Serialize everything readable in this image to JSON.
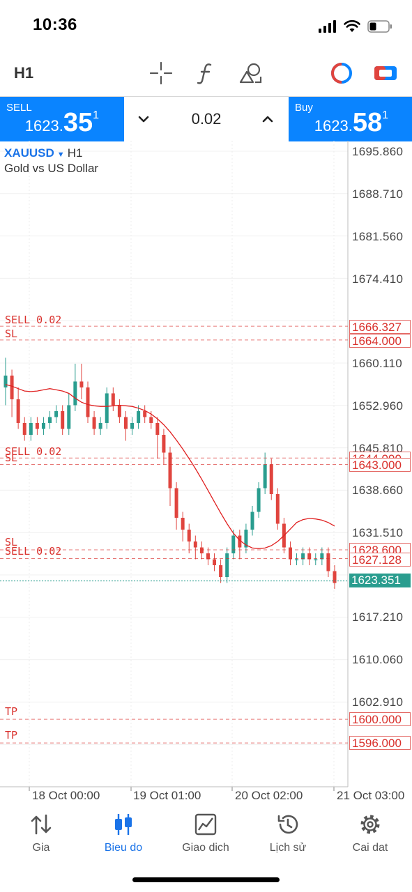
{
  "status_bar": {
    "time": "10:36"
  },
  "toolbar": {
    "timeframe": "H1"
  },
  "trade": {
    "sell_label": "SELL",
    "sell_price_main": "1623.",
    "sell_price_big": "35",
    "sell_price_sup": "1",
    "lot": "0.02",
    "buy_label": "Buy",
    "buy_price_main": "1623.",
    "buy_price_big": "58",
    "buy_price_sup": "1"
  },
  "chart": {
    "symbol": "XAUUSD",
    "timeframe": "H1",
    "description": "Gold vs US Dollar",
    "y_axis_labels": [
      "1695.860",
      "1688.710",
      "1681.560",
      "1674.410",
      "1660.110",
      "1652.960",
      "1645.810",
      "1638.660",
      "1631.510",
      "1617.210",
      "1610.060",
      "1602.910"
    ],
    "x_axis_labels": [
      "18 Oct 00:00",
      "19 Oct 01:00",
      "20 Oct 02:00",
      "21 Oct 03:00"
    ],
    "level_lines": [
      {
        "label": "SELL 0.02",
        "price": "1666.327"
      },
      {
        "label": "SL",
        "price": "1664.000"
      },
      {
        "label": "SELL 0.02",
        "price": "1644.090"
      },
      {
        "label": "SL",
        "price": "1643.000"
      },
      {
        "label": "SL",
        "price": "1628.600"
      },
      {
        "label": "SELL 0.02",
        "price": "1627.128"
      },
      {
        "label": "TP",
        "price": "1600.000"
      },
      {
        "label": "TP",
        "price": "1596.000"
      }
    ],
    "current_price": "1623.351"
  },
  "colors": {
    "accent": "#0a84ff",
    "bull": "#2a9d8f",
    "bear": "#e0443e",
    "level": "#d9302c",
    "ma": "#e02020"
  },
  "chart_data": {
    "type": "candlestick",
    "ylim": [
      1591.5,
      1698.0
    ],
    "series_ma": [
      1656.5,
      1656.2,
      1655.8,
      1655.4,
      1655.3,
      1655.4,
      1655.6,
      1655.8,
      1655.6,
      1655.4,
      1655.0,
      1654.2,
      1653.5,
      1653.1,
      1652.9,
      1652.8,
      1652.8,
      1652.9,
      1653.0,
      1652.9,
      1652.8,
      1652.5,
      1652.1,
      1651.5,
      1650.7,
      1649.7,
      1648.5,
      1647.1,
      1645.6,
      1644.0,
      1642.3,
      1640.5,
      1638.6,
      1636.7,
      1634.8,
      1633.0,
      1631.4,
      1630.2,
      1629.4,
      1628.9,
      1628.8,
      1628.9,
      1629.3,
      1630.0,
      1631.0,
      1632.1,
      1633.2,
      1633.7,
      1633.9,
      1633.8,
      1633.6,
      1633.2,
      1632.6
    ],
    "candles": [
      [
        1656,
        1658,
        1653,
        1661
      ],
      [
        1658,
        1654,
        1651,
        1659
      ],
      [
        1654,
        1650,
        1649,
        1656
      ],
      [
        1650,
        1648,
        1647,
        1651
      ],
      [
        1648,
        1650,
        1647,
        1651
      ],
      [
        1650,
        1649,
        1648,
        1651
      ],
      [
        1649,
        1650,
        1648,
        1651
      ],
      [
        1650,
        1651,
        1649,
        1652
      ],
      [
        1651,
        1652,
        1650,
        1653
      ],
      [
        1652,
        1649,
        1648,
        1653
      ],
      [
        1649,
        1653,
        1648,
        1655
      ],
      [
        1653,
        1657,
        1652,
        1660
      ],
      [
        1657,
        1656,
        1654,
        1660
      ],
      [
        1656,
        1651,
        1650,
        1657
      ],
      [
        1651,
        1649,
        1648,
        1652
      ],
      [
        1649,
        1650,
        1648,
        1651
      ],
      [
        1650,
        1655,
        1649,
        1656
      ],
      [
        1655,
        1653,
        1652,
        1656
      ],
      [
        1653,
        1651,
        1650,
        1654
      ],
      [
        1651,
        1649,
        1647,
        1652
      ],
      [
        1649,
        1650,
        1648,
        1651
      ],
      [
        1650,
        1652,
        1649,
        1653
      ],
      [
        1652,
        1651,
        1650,
        1653
      ],
      [
        1651,
        1650,
        1649,
        1652
      ],
      [
        1650,
        1648,
        1644,
        1651
      ],
      [
        1648,
        1645,
        1643,
        1649
      ],
      [
        1645,
        1639,
        1636,
        1646
      ],
      [
        1639,
        1634,
        1632,
        1640
      ],
      [
        1634,
        1632,
        1630,
        1635
      ],
      [
        1632,
        1630,
        1628,
        1633
      ],
      [
        1630,
        1629,
        1627,
        1631
      ],
      [
        1629,
        1628,
        1627,
        1630
      ],
      [
        1628,
        1627,
        1626,
        1629
      ],
      [
        1627,
        1626,
        1625,
        1628
      ],
      [
        1626,
        1624,
        1623,
        1627
      ],
      [
        1624,
        1628,
        1623,
        1629
      ],
      [
        1628,
        1631,
        1627,
        1632
      ],
      [
        1631,
        1629,
        1627,
        1632
      ],
      [
        1629,
        1632,
        1628,
        1633
      ],
      [
        1632,
        1635,
        1631,
        1636
      ],
      [
        1635,
        1639,
        1634,
        1640
      ],
      [
        1639,
        1643,
        1638,
        1645
      ],
      [
        1643,
        1638,
        1637,
        1644
      ],
      [
        1638,
        1633,
        1632,
        1639
      ],
      [
        1633,
        1629,
        1628,
        1634
      ],
      [
        1629,
        1627,
        1626,
        1630
      ],
      [
        1627,
        1627,
        1626,
        1628
      ],
      [
        1627,
        1628,
        1626,
        1629
      ],
      [
        1628,
        1627,
        1626,
        1629
      ],
      [
        1627,
        1627,
        1626,
        1628
      ],
      [
        1627,
        1628,
        1626,
        1629
      ],
      [
        1628,
        1625,
        1624,
        1629
      ],
      [
        1625,
        1623,
        1622,
        1626
      ]
    ]
  }
}
